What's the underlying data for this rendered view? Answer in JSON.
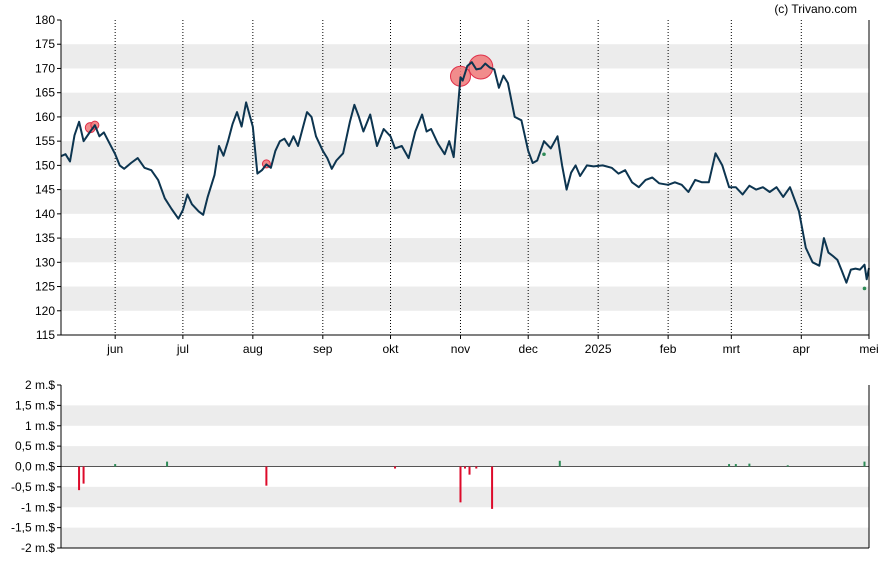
{
  "watermark": "(c) Trivano.com",
  "colors": {
    "price_line": "#0d3550",
    "band": "#ececec",
    "axis": "#000000",
    "bubble_fill": "#f08080",
    "bubble_stroke": "#e0304a",
    "buy": "#2e8b57",
    "sell": "#dd0a2a",
    "dot": "#2e8b57"
  },
  "chart_data": [
    {
      "type": "line",
      "title": "",
      "xlabel": "",
      "ylabel": "",
      "ylim": [
        115,
        180
      ],
      "y_ticks": [
        115,
        120,
        125,
        130,
        135,
        140,
        145,
        150,
        155,
        160,
        165,
        170,
        175,
        180
      ],
      "grid": "dotted vertical month lines, alternating horizontal bands",
      "x_range": [
        "2024-05-08",
        "2025-05-01"
      ],
      "month_ticks": [
        {
          "label": "jun",
          "date": "2024-06-01"
        },
        {
          "label": "jul",
          "date": "2024-07-01"
        },
        {
          "label": "aug",
          "date": "2024-08-01"
        },
        {
          "label": "sep",
          "date": "2024-09-01"
        },
        {
          "label": "okt",
          "date": "2024-10-01"
        },
        {
          "label": "nov",
          "date": "2024-11-01"
        },
        {
          "label": "dec",
          "date": "2024-12-01"
        },
        {
          "label": "2025",
          "date": "2025-01-01"
        },
        {
          "label": "feb",
          "date": "2025-02-01"
        },
        {
          "label": "mrt",
          "date": "2025-03-01"
        },
        {
          "label": "apr",
          "date": "2025-04-01"
        },
        {
          "label": "mei",
          "date": "2025-05-01"
        }
      ],
      "series": [
        {
          "points": [
            [
              "2024-05-08",
              151.9
            ],
            [
              "2024-05-10",
              152.3
            ],
            [
              "2024-05-12",
              150.8
            ],
            [
              "2024-05-14",
              156.2
            ],
            [
              "2024-05-16",
              159.0
            ],
            [
              "2024-05-18",
              155.0
            ],
            [
              "2024-05-21",
              157.0
            ],
            [
              "2024-05-23",
              158.3
            ],
            [
              "2024-05-25",
              156.0
            ],
            [
              "2024-05-27",
              156.8
            ],
            [
              "2024-05-29",
              155.0
            ],
            [
              "2024-06-01",
              152.3
            ],
            [
              "2024-06-03",
              150.0
            ],
            [
              "2024-06-05",
              149.3
            ],
            [
              "2024-06-08",
              150.5
            ],
            [
              "2024-06-11",
              151.5
            ],
            [
              "2024-06-14",
              149.5
            ],
            [
              "2024-06-17",
              149.0
            ],
            [
              "2024-06-20",
              147.0
            ],
            [
              "2024-06-23",
              143.2
            ],
            [
              "2024-06-26",
              141.0
            ],
            [
              "2024-06-29",
              139.0
            ],
            [
              "2024-07-01",
              140.8
            ],
            [
              "2024-07-03",
              144.0
            ],
            [
              "2024-07-05",
              142.0
            ],
            [
              "2024-07-08",
              140.5
            ],
            [
              "2024-07-10",
              139.8
            ],
            [
              "2024-07-12",
              143.5
            ],
            [
              "2024-07-15",
              148.0
            ],
            [
              "2024-07-17",
              154.0
            ],
            [
              "2024-07-19",
              152.0
            ],
            [
              "2024-07-21",
              155.0
            ],
            [
              "2024-07-23",
              158.5
            ],
            [
              "2024-07-25",
              161.0
            ],
            [
              "2024-07-27",
              158.0
            ],
            [
              "2024-07-29",
              163.0
            ],
            [
              "2024-08-01",
              158.0
            ],
            [
              "2024-08-03",
              148.3
            ],
            [
              "2024-08-05",
              149.0
            ],
            [
              "2024-08-07",
              150.2
            ],
            [
              "2024-08-09",
              149.5
            ],
            [
              "2024-08-11",
              153.0
            ],
            [
              "2024-08-13",
              155.0
            ],
            [
              "2024-08-15",
              155.5
            ],
            [
              "2024-08-17",
              154.0
            ],
            [
              "2024-08-19",
              156.0
            ],
            [
              "2024-08-21",
              154.0
            ],
            [
              "2024-08-23",
              157.5
            ],
            [
              "2024-08-25",
              161.0
            ],
            [
              "2024-08-27",
              160.0
            ],
            [
              "2024-08-29",
              156.0
            ],
            [
              "2024-09-01",
              153.0
            ],
            [
              "2024-09-03",
              151.5
            ],
            [
              "2024-09-05",
              149.3
            ],
            [
              "2024-09-07",
              151.0
            ],
            [
              "2024-09-10",
              152.5
            ],
            [
              "2024-09-13",
              159.0
            ],
            [
              "2024-09-15",
              162.5
            ],
            [
              "2024-09-17",
              160.0
            ],
            [
              "2024-09-19",
              157.0
            ],
            [
              "2024-09-22",
              160.5
            ],
            [
              "2024-09-25",
              154.0
            ],
            [
              "2024-09-28",
              157.5
            ],
            [
              "2024-10-01",
              156.0
            ],
            [
              "2024-10-03",
              153.5
            ],
            [
              "2024-10-06",
              154.0
            ],
            [
              "2024-10-09",
              151.5
            ],
            [
              "2024-10-12",
              157.0
            ],
            [
              "2024-10-15",
              160.5
            ],
            [
              "2024-10-17",
              157.0
            ],
            [
              "2024-10-19",
              157.5
            ],
            [
              "2024-10-22",
              154.5
            ],
            [
              "2024-10-25",
              152.3
            ],
            [
              "2024-10-27",
              155.0
            ],
            [
              "2024-10-29",
              151.7
            ],
            [
              "2024-11-01",
              168.2
            ],
            [
              "2024-11-02",
              167.5
            ],
            [
              "2024-11-04",
              170.5
            ],
            [
              "2024-11-06",
              171.3
            ],
            [
              "2024-11-08",
              169.8
            ],
            [
              "2024-11-10",
              170.0
            ],
            [
              "2024-11-12",
              171.0
            ],
            [
              "2024-11-14",
              170.2
            ],
            [
              "2024-11-16",
              169.8
            ],
            [
              "2024-11-18",
              166.0
            ],
            [
              "2024-11-20",
              168.5
            ],
            [
              "2024-11-22",
              167.0
            ],
            [
              "2024-11-25",
              160.0
            ],
            [
              "2024-11-28",
              159.3
            ],
            [
              "2024-12-01",
              153.0
            ],
            [
              "2024-12-03",
              150.5
            ],
            [
              "2024-12-05",
              151.0
            ],
            [
              "2024-12-08",
              155.0
            ],
            [
              "2024-12-11",
              153.5
            ],
            [
              "2024-12-14",
              156.0
            ],
            [
              "2024-12-16",
              150.0
            ],
            [
              "2024-12-18",
              145.0
            ],
            [
              "2024-12-20",
              148.5
            ],
            [
              "2024-12-22",
              150.0
            ],
            [
              "2024-12-24",
              147.8
            ],
            [
              "2024-12-27",
              150.0
            ],
            [
              "2024-12-30",
              149.8
            ],
            [
              "2025-01-03",
              150.0
            ],
            [
              "2025-01-07",
              149.5
            ],
            [
              "2025-01-10",
              148.3
            ],
            [
              "2025-01-13",
              149.0
            ],
            [
              "2025-01-16",
              146.5
            ],
            [
              "2025-01-19",
              145.5
            ],
            [
              "2025-01-22",
              147.0
            ],
            [
              "2025-01-25",
              147.5
            ],
            [
              "2025-01-28",
              146.3
            ],
            [
              "2025-02-01",
              146.0
            ],
            [
              "2025-02-04",
              146.5
            ],
            [
              "2025-02-07",
              146.0
            ],
            [
              "2025-02-10",
              144.5
            ],
            [
              "2025-02-13",
              147.0
            ],
            [
              "2025-02-16",
              146.5
            ],
            [
              "2025-02-19",
              146.5
            ],
            [
              "2025-02-22",
              152.5
            ],
            [
              "2025-02-25",
              150.0
            ],
            [
              "2025-02-28",
              145.5
            ],
            [
              "2025-03-03",
              145.5
            ],
            [
              "2025-03-06",
              144.0
            ],
            [
              "2025-03-09",
              145.8
            ],
            [
              "2025-03-12",
              145.0
            ],
            [
              "2025-03-15",
              145.5
            ],
            [
              "2025-03-18",
              144.5
            ],
            [
              "2025-03-21",
              145.5
            ],
            [
              "2025-03-24",
              143.5
            ],
            [
              "2025-03-27",
              145.5
            ],
            [
              "2025-03-31",
              140.5
            ],
            [
              "2025-04-03",
              133.0
            ],
            [
              "2025-04-06",
              130.0
            ],
            [
              "2025-04-09",
              129.3
            ],
            [
              "2025-04-11",
              135.0
            ],
            [
              "2025-04-13",
              132.0
            ],
            [
              "2025-04-15",
              131.3
            ],
            [
              "2025-04-17",
              130.5
            ],
            [
              "2025-04-19",
              128.2
            ],
            [
              "2025-04-21",
              125.8
            ],
            [
              "2025-04-23",
              128.5
            ],
            [
              "2025-04-25",
              128.7
            ],
            [
              "2025-04-27",
              128.5
            ],
            [
              "2025-04-29",
              129.5
            ],
            [
              "2025-04-30",
              126.5
            ],
            [
              "2025-05-01",
              128.8
            ]
          ]
        }
      ],
      "bubbles": [
        {
          "date": "2024-05-21",
          "value": 157.8,
          "size": 5
        },
        {
          "date": "2024-05-23",
          "value": 158.3,
          "size": 4
        },
        {
          "date": "2024-08-07",
          "value": 150.3,
          "size": 4
        },
        {
          "date": "2024-11-01",
          "value": 168.4,
          "size": 10
        },
        {
          "date": "2024-11-10",
          "value": 170.3,
          "size": 12
        }
      ],
      "dots": [
        {
          "date": "2024-12-08",
          "value": 152.3
        },
        {
          "date": "2025-04-29",
          "value": 124.6
        }
      ]
    },
    {
      "type": "bar",
      "title": "",
      "xlabel": "",
      "ylabel": "",
      "ylim": [
        -2,
        2
      ],
      "y_ticks": [
        {
          "value": 2,
          "label": "2 m.$"
        },
        {
          "value": 1.5,
          "label": "1,5 m.$"
        },
        {
          "value": 1,
          "label": "1 m.$"
        },
        {
          "value": 0.5,
          "label": "0,5 m.$"
        },
        {
          "value": 0,
          "label": "0,0 m.$"
        },
        {
          "value": -0.5,
          "label": "-0,5 m.$"
        },
        {
          "value": -1,
          "label": "-1 m.$"
        },
        {
          "value": -1.5,
          "label": "-1,5 m.$"
        },
        {
          "value": -2,
          "label": "-2 m.$"
        }
      ],
      "bars": [
        {
          "date": "2024-05-16",
          "value": -0.58
        },
        {
          "date": "2024-05-18",
          "value": -0.42
        },
        {
          "date": "2024-06-01",
          "value": 0.06
        },
        {
          "date": "2024-06-24",
          "value": 0.12
        },
        {
          "date": "2024-08-07",
          "value": -0.47
        },
        {
          "date": "2024-10-03",
          "value": -0.05
        },
        {
          "date": "2024-11-01",
          "value": -0.88
        },
        {
          "date": "2024-11-03",
          "value": -0.05
        },
        {
          "date": "2024-11-05",
          "value": -0.2
        },
        {
          "date": "2024-11-08",
          "value": -0.05
        },
        {
          "date": "2024-11-15",
          "value": -1.04
        },
        {
          "date": "2024-12-15",
          "value": 0.14
        },
        {
          "date": "2025-02-28",
          "value": 0.06
        },
        {
          "date": "2025-03-03",
          "value": 0.06
        },
        {
          "date": "2025-03-09",
          "value": 0.07
        },
        {
          "date": "2025-03-26",
          "value": 0.03
        },
        {
          "date": "2025-04-29",
          "value": 0.12
        }
      ]
    }
  ]
}
